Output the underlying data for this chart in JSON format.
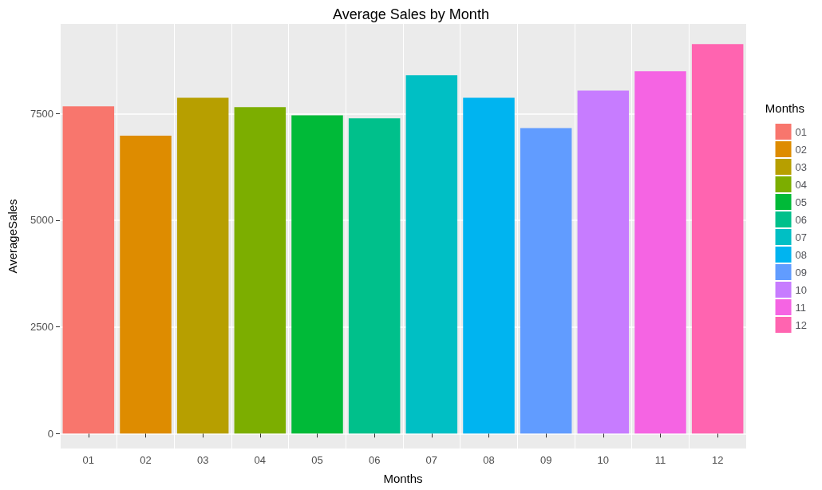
{
  "chart_data": {
    "type": "bar",
    "title": "Average Sales by Month",
    "xlabel": "Months",
    "ylabel": "AverageSales",
    "legend_title": "Months",
    "categories": [
      "01",
      "02",
      "03",
      "04",
      "05",
      "06",
      "07",
      "08",
      "09",
      "10",
      "11",
      "12"
    ],
    "stacked": true,
    "series": [
      {
        "name": "01",
        "color": "#f8766d",
        "values": [
          7670,
          null,
          null,
          null,
          null,
          null,
          null,
          null,
          null,
          null,
          null,
          null
        ]
      },
      {
        "name": "02",
        "color": "#de8c00",
        "values": [
          null,
          6980,
          null,
          null,
          null,
          null,
          null,
          null,
          null,
          null,
          null,
          null
        ]
      },
      {
        "name": "03",
        "color": "#b79f00",
        "values": [
          null,
          null,
          7870,
          null,
          null,
          null,
          null,
          null,
          null,
          null,
          null,
          null
        ]
      },
      {
        "name": "04",
        "color": "#7cae00",
        "values": [
          null,
          null,
          null,
          7650,
          null,
          null,
          null,
          null,
          null,
          null,
          null,
          null
        ]
      },
      {
        "name": "05",
        "color": "#00ba38",
        "values": [
          null,
          null,
          null,
          null,
          7460,
          null,
          null,
          null,
          null,
          null,
          null,
          null
        ]
      },
      {
        "name": "06",
        "color": "#00c08b",
        "values": [
          null,
          null,
          null,
          null,
          null,
          7390,
          null,
          null,
          null,
          null,
          null,
          null
        ]
      },
      {
        "name": "07",
        "color": "#00bfc4",
        "values": [
          null,
          null,
          null,
          null,
          null,
          null,
          8400,
          null,
          null,
          null,
          null,
          null
        ]
      },
      {
        "name": "08",
        "color": "#00b4f0",
        "values": [
          null,
          null,
          null,
          null,
          null,
          null,
          null,
          7870,
          null,
          null,
          null,
          null
        ]
      },
      {
        "name": "09",
        "color": "#619cff",
        "values": [
          null,
          null,
          null,
          null,
          null,
          null,
          null,
          null,
          7160,
          null,
          null,
          null
        ]
      },
      {
        "name": "10",
        "color": "#c77cff",
        "values": [
          null,
          null,
          null,
          null,
          null,
          null,
          null,
          null,
          null,
          8040,
          null,
          null
        ]
      },
      {
        "name": "11",
        "color": "#f564e3",
        "values": [
          null,
          null,
          null,
          null,
          null,
          null,
          null,
          null,
          null,
          null,
          8490,
          null
        ]
      },
      {
        "name": "12",
        "color": "#ff64b0",
        "values": [
          null,
          null,
          null,
          null,
          null,
          null,
          null,
          null,
          null,
          null,
          null,
          9130
        ]
      }
    ],
    "ylim": [
      -350,
      9600
    ],
    "yticks": [
      0,
      2500,
      5000,
      7500
    ],
    "grid": true,
    "legend": "right"
  }
}
